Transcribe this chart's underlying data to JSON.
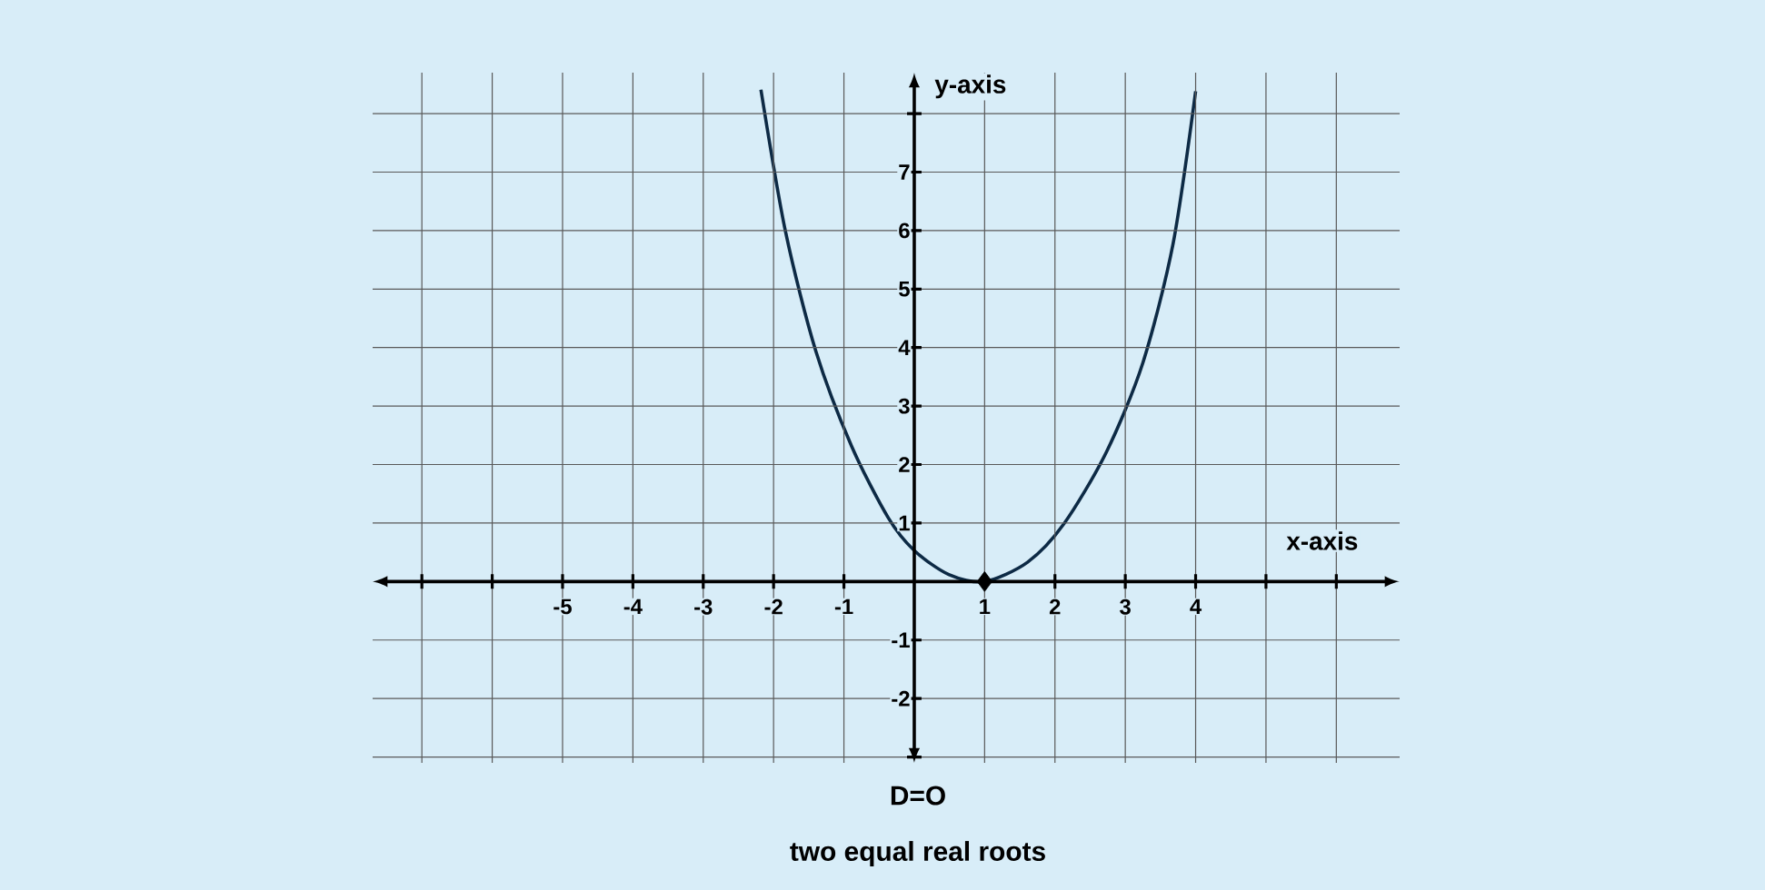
{
  "chart_data": {
    "type": "line",
    "xlabel": "x-axis",
    "ylabel": "y-axis",
    "annotations": [
      "D=O",
      "two equal real roots"
    ],
    "xlim": [
      -7.7,
      6.9
    ],
    "ylim": [
      -3.1,
      8.7
    ],
    "xticks": [
      {
        "value": -7,
        "label": null
      },
      {
        "value": -6,
        "label": null
      },
      -5,
      -4,
      -3,
      -2,
      -1,
      {
        "value": 0,
        "label": null
      },
      1,
      2,
      3,
      4,
      {
        "value": 5,
        "label": null
      },
      {
        "value": 6,
        "label": null
      }
    ],
    "yticks": [
      {
        "value": -3,
        "label": null
      },
      -2,
      -1,
      {
        "value": 0,
        "label": null
      },
      1,
      2,
      3,
      4,
      5,
      6,
      7,
      {
        "value": 8,
        "label": null
      }
    ],
    "grid": true,
    "series": [
      {
        "type": "line",
        "color": "#0d2a45",
        "marker": "none",
        "line_style": "solid",
        "x": [
          -2.18,
          -1.83,
          -1.4,
          -0.89,
          -0.37,
          0,
          0.49,
          1,
          1.61,
          2.13,
          2.73,
          3.25,
          3.68,
          4.0
        ],
        "values": [
          8.41,
          5.98,
          3.94,
          2.31,
          1.09,
          0.53,
          0.12,
          0,
          0.33,
          0.99,
          2.21,
          3.74,
          5.78,
          8.38
        ]
      },
      {
        "type": "scatter",
        "color": "#000000",
        "marker": "diamond",
        "x": [
          1
        ],
        "values": [
          0
        ]
      }
    ]
  }
}
